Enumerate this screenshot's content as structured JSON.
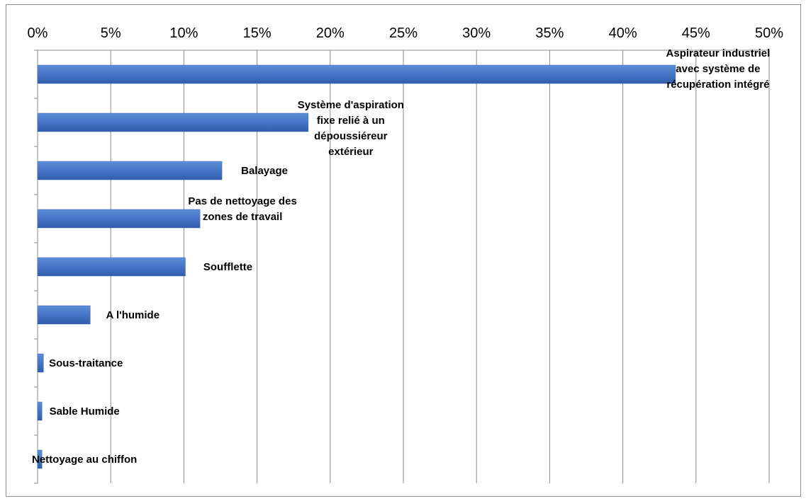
{
  "chart_data": {
    "type": "bar",
    "orientation": "horizontal",
    "title": "",
    "xlabel": "",
    "ylabel": "",
    "xlim": [
      0,
      50
    ],
    "x_axis_position": "top",
    "x_ticks": [
      "0%",
      "5%",
      "10%",
      "15%",
      "20%",
      "25%",
      "30%",
      "35%",
      "40%",
      "45%",
      "50%"
    ],
    "grid": true,
    "legend": "none",
    "bar_color": "#4472C4",
    "categories": [
      "Aspirateur industriel avec système de récupération intégré",
      "Système d'aspiration fixe relié à un dépoussiéreur extérieur",
      "Balayage",
      "Pas de nettoyage des zones de travail",
      "Soufflette",
      "A l'humide",
      "Sous-traitance",
      "Sable Humide",
      "Nettoyage au chiffon"
    ],
    "label_lines": [
      [
        "Aspirateur industriel",
        "avec système de",
        "récupération intégré"
      ],
      [
        "Système d'aspiration",
        "fixe relié à un",
        "dépoussiéreur",
        "extérieur"
      ],
      [
        "Balayage"
      ],
      [
        "Pas de nettoyage des",
        "zones de travail"
      ],
      [
        "Soufflette"
      ],
      [
        "A l'humide"
      ],
      [
        "Sous-traitance"
      ],
      [
        "Sable Humide"
      ],
      [
        "Nettoyage au chiffon"
      ]
    ],
    "values": [
      43.6,
      18.5,
      12.6,
      11.1,
      10.1,
      3.6,
      0.4,
      0.3,
      0.3
    ]
  }
}
